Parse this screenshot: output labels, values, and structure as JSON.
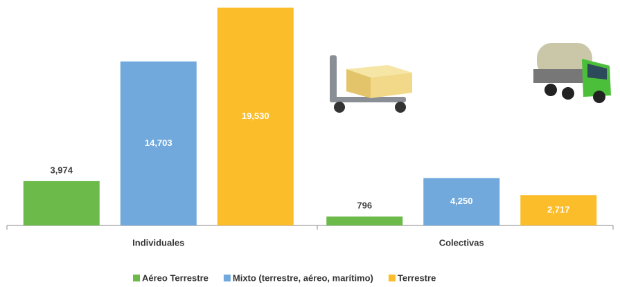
{
  "chart_data": {
    "type": "bar",
    "categories": [
      "Individuales",
      "Colectivas"
    ],
    "series": [
      {
        "name": "Aéreo Terrestre",
        "color": "#6cbb4a",
        "values": [
          3974,
          796
        ],
        "value_labels": [
          "3,974",
          "796"
        ]
      },
      {
        "name": "Mixto (terrestre, aéreo, marítimo)",
        "color": "#71a9dd",
        "values": [
          14703,
          4250
        ],
        "value_labels": [
          "14,703",
          "4,250"
        ]
      },
      {
        "name": "Terrestre",
        "color": "#fbbd2a",
        "values": [
          19530,
          2717
        ],
        "value_labels": [
          "19,530",
          "2,717"
        ]
      }
    ]
  }
}
